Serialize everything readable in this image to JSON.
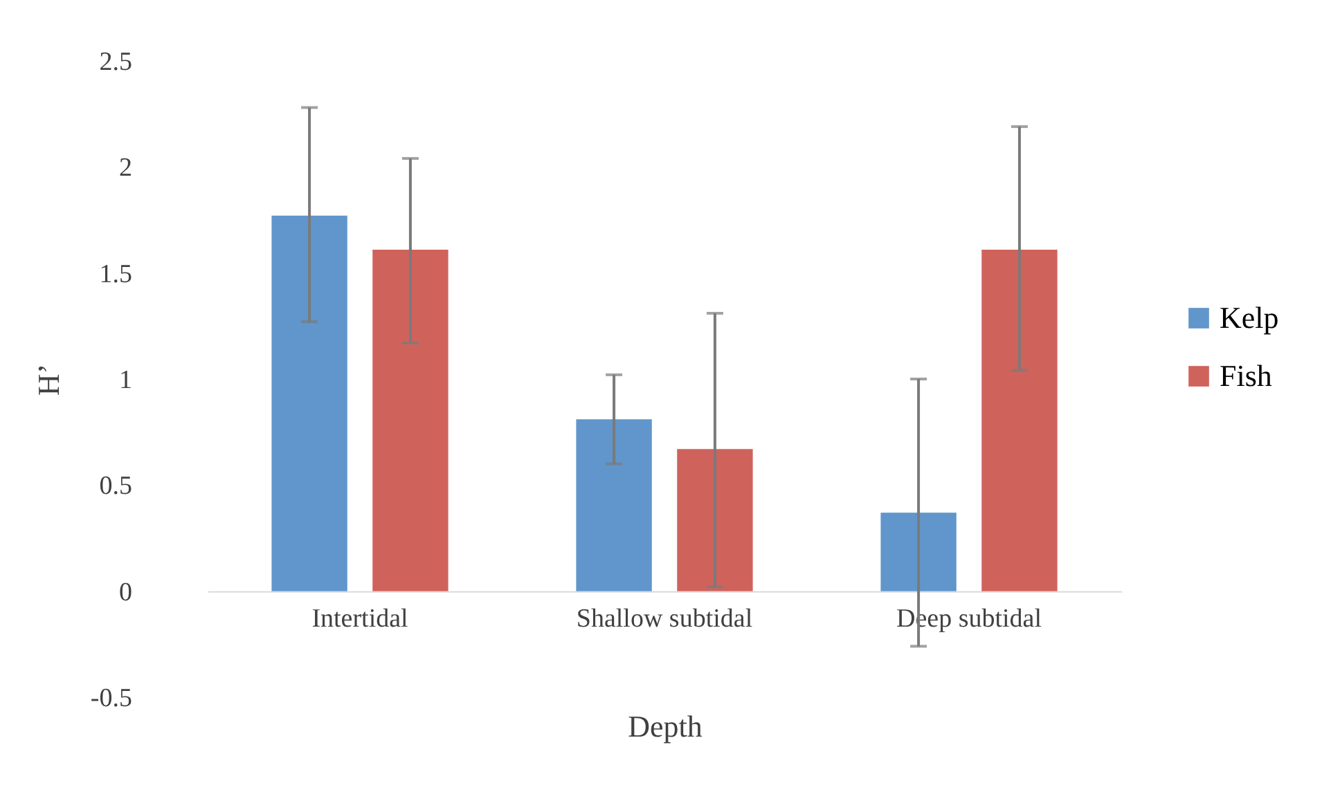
{
  "chart_data": {
    "type": "bar",
    "xlabel": "Depth",
    "ylabel": "H’",
    "categories": [
      "Intertidal",
      "Shallow subtidal",
      "Deep subtidal"
    ],
    "series": [
      {
        "name": "Kelp",
        "color": "#6096cb",
        "values": [
          1.77,
          0.81,
          0.37
        ],
        "errors": [
          [
            1.27,
            2.28
          ],
          [
            0.6,
            1.02
          ],
          [
            -0.26,
            1.0
          ]
        ]
      },
      {
        "name": "Fish",
        "color": "#cf635c",
        "values": [
          1.61,
          0.67,
          1.61
        ],
        "errors": [
          [
            1.17,
            2.04
          ],
          [
            0.02,
            1.31
          ],
          [
            1.04,
            2.19
          ]
        ]
      }
    ],
    "ylim": [
      -0.5,
      2.5
    ],
    "yticks": [
      -0.5,
      0,
      0.5,
      1,
      1.5,
      2,
      2.5
    ],
    "legend": "right",
    "grid": false
  }
}
